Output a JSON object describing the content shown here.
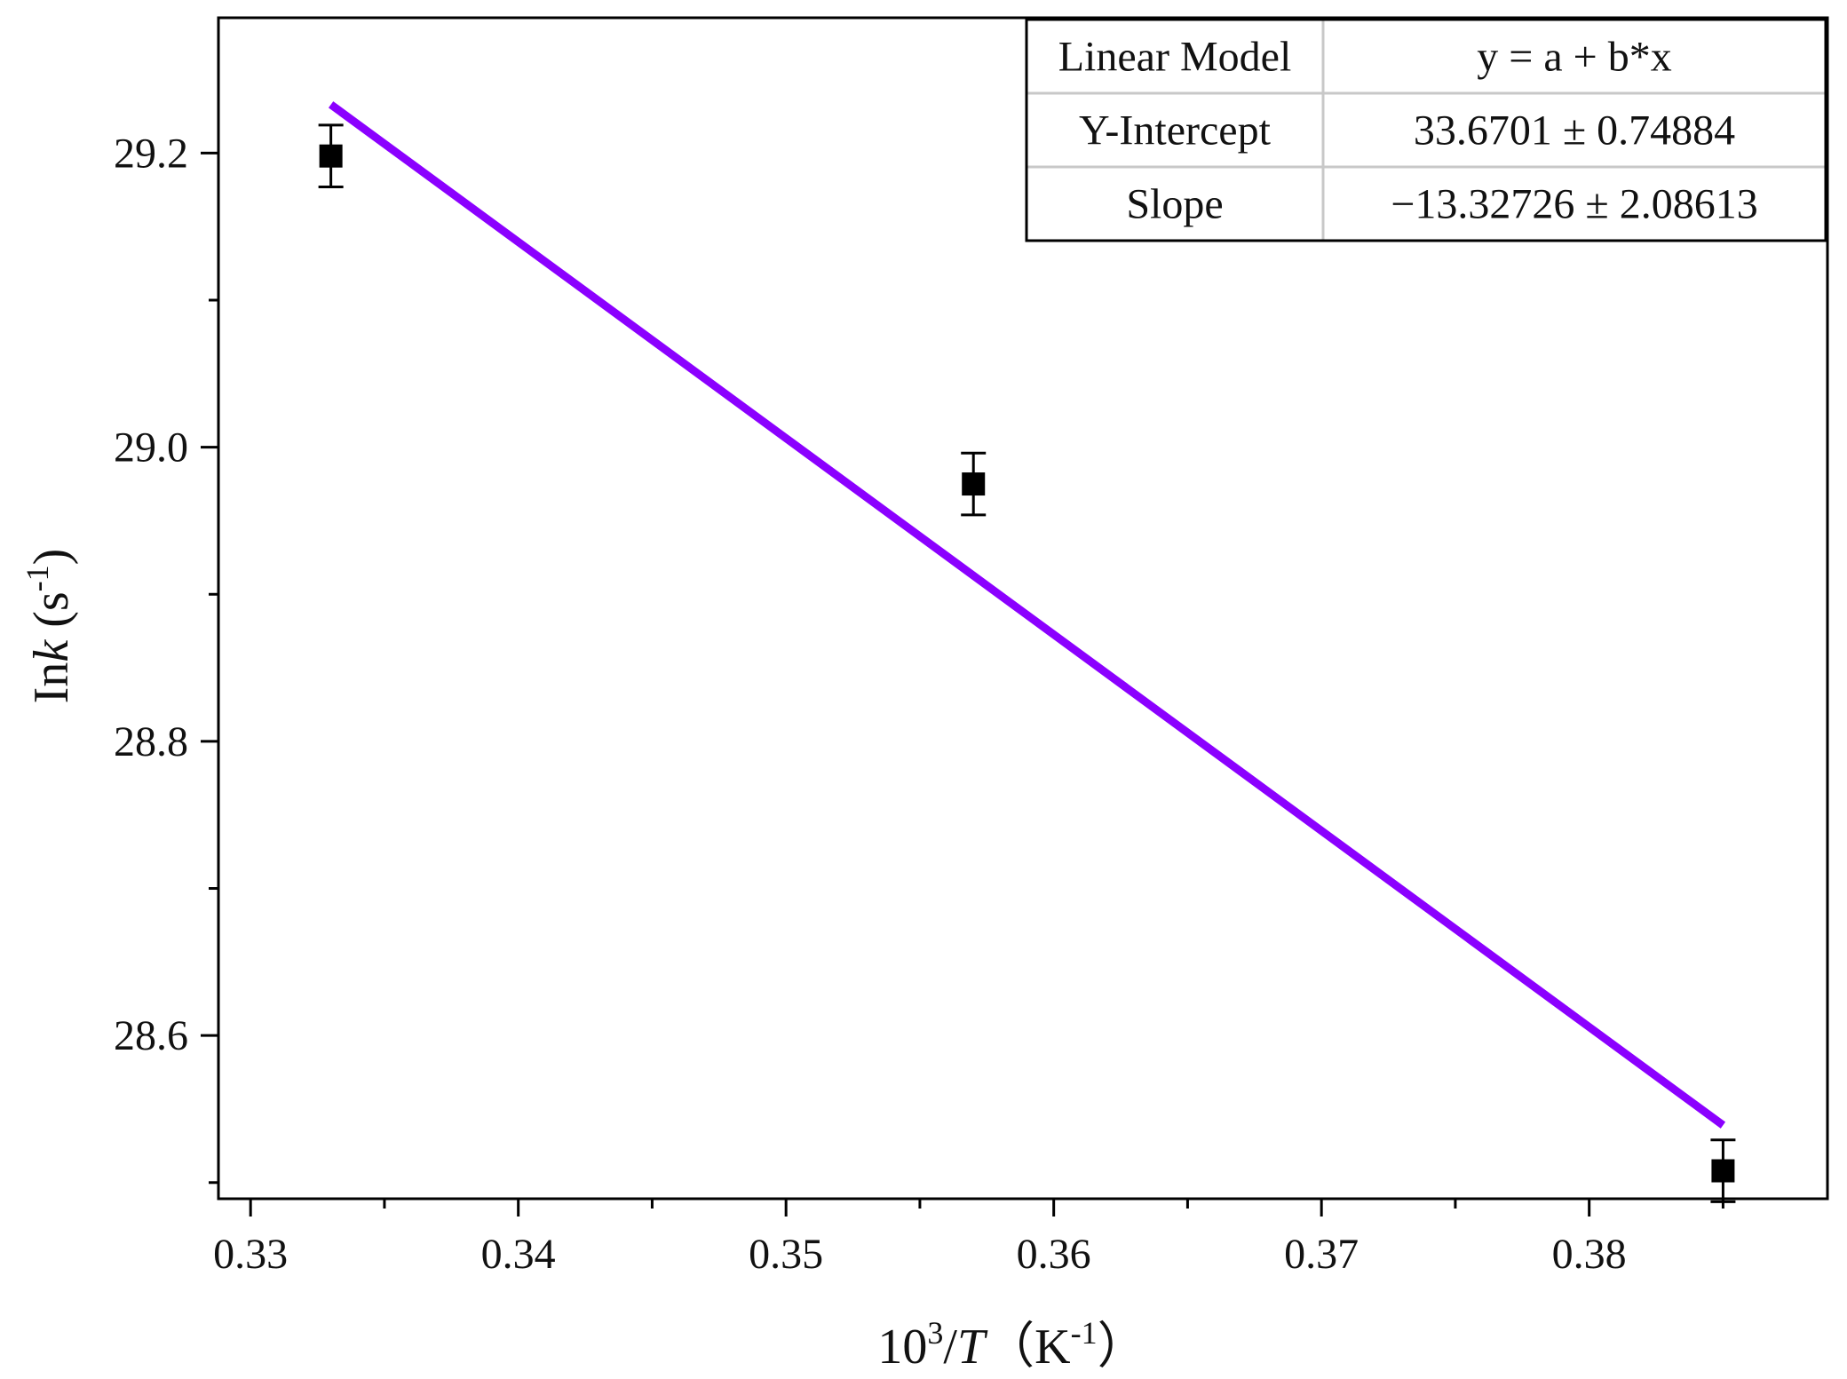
{
  "chart_data": {
    "type": "scatter",
    "title": "",
    "xlabel": {
      "prefix": "10",
      "sup": "3",
      "slash": "/",
      "var": "T",
      "unit_open": "（K",
      "unit_sup": "-1",
      "unit_close": "）"
    },
    "ylabel": {
      "prefix": "In",
      "var": "k",
      "unit_open": " (s",
      "unit_sup": "-1",
      "unit_close": ")"
    },
    "xlim": [
      0.3288,
      0.3889
    ],
    "ylim": [
      28.489,
      29.292
    ],
    "x_ticks": [
      0.33,
      0.34,
      0.35,
      0.36,
      0.37,
      0.38
    ],
    "x_tick_labels": [
      "0.33",
      "0.34",
      "0.35",
      "0.36",
      "0.37",
      "0.38"
    ],
    "x_minor_ticks": [
      0.335,
      0.345,
      0.355,
      0.365,
      0.375,
      0.385
    ],
    "y_ticks": [
      28.6,
      28.8,
      29.0,
      29.2
    ],
    "y_tick_labels": [
      "28.6",
      "28.8",
      "29.0",
      "29.2"
    ],
    "y_minor_ticks": [
      28.5,
      28.7,
      28.9,
      29.1
    ],
    "grid": false,
    "series": [
      {
        "type": "scatter",
        "marker": "square",
        "color": "#000000",
        "x": [
          0.333,
          0.357,
          0.385
        ],
        "y": [
          29.198,
          28.975,
          28.508
        ],
        "yerr": [
          0.021,
          0.021,
          0.021
        ]
      },
      {
        "type": "line",
        "color": "#8B00FF",
        "x": [
          0.333,
          0.385
        ],
        "y": [
          29.233,
          28.539
        ]
      }
    ],
    "fit_table": {
      "position": "top-right",
      "rows": [
        [
          "Linear Model",
          "y = a + b*x"
        ],
        [
          "Y-Intercept",
          "33.6701 ± 0.74884"
        ],
        [
          "Slope",
          "−13.32726 ± 2.08613"
        ]
      ]
    }
  }
}
